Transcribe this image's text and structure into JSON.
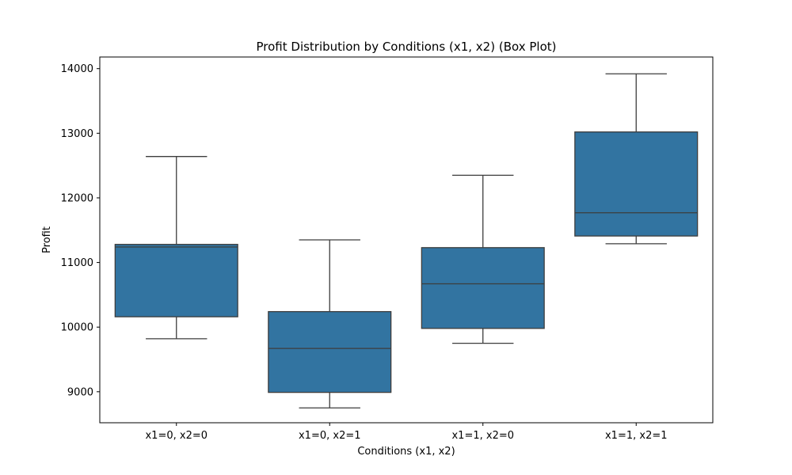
{
  "chart_data": {
    "type": "box",
    "title": "Profit Distribution by Conditions (x1, x2) (Box Plot)",
    "xlabel": "Conditions (x1, x2)",
    "ylabel": "Profit",
    "ylim": [
      8520,
      14180
    ],
    "yticks": [
      9000,
      10000,
      11000,
      12000,
      13000,
      14000
    ],
    "categories": [
      "x1=0, x2=0",
      "x1=0, x2=1",
      "x1=1, x2=0",
      "x1=1, x2=1"
    ],
    "boxes": [
      {
        "category": "x1=0, x2=0",
        "whisker_low": 9820,
        "q1": 10160,
        "median": 11240,
        "q3": 11280,
        "whisker_high": 12640
      },
      {
        "category": "x1=0, x2=1",
        "whisker_low": 8750,
        "q1": 8990,
        "median": 9670,
        "q3": 10240,
        "whisker_high": 11350
      },
      {
        "category": "x1=1, x2=0",
        "whisker_low": 9750,
        "q1": 9980,
        "median": 10670,
        "q3": 11230,
        "whisker_high": 12350
      },
      {
        "category": "x1=1, x2=1",
        "whisker_low": 11290,
        "q1": 11410,
        "median": 11770,
        "q3": 13020,
        "whisker_high": 13920
      }
    ],
    "colors": {
      "box_fill": "#3274a1",
      "line": "#3d3d3d"
    },
    "grid": false,
    "legend": "none"
  }
}
